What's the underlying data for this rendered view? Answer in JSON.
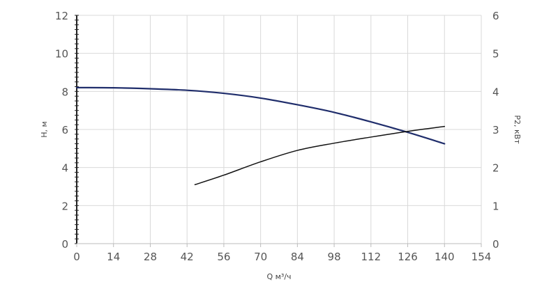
{
  "chart_data": {
    "type": "line",
    "title": "",
    "xlabel": "Q м³/ч",
    "ylabel_left": "H, м",
    "ylabel_right": "P2, кВт",
    "xlim": [
      0,
      154
    ],
    "ylim_left": [
      0,
      12
    ],
    "ylim_right": [
      0,
      6
    ],
    "grid": true,
    "legend": "none",
    "x_ticks": [
      "0",
      "14",
      "28",
      "42",
      "56",
      "70",
      "84",
      "98",
      "112",
      "126",
      "140",
      "154"
    ],
    "y_left_ticks": [
      "0",
      "2",
      "4",
      "6",
      "8",
      "10",
      "12"
    ],
    "y_right_ticks": [
      "0",
      "1",
      "2",
      "3",
      "4",
      "5",
      "6"
    ],
    "colors": {
      "head": "#1f2d6b",
      "power": "#111111",
      "grid": "#d9d9d9"
    },
    "series": [
      {
        "axis": "left",
        "color_key": "head",
        "x": [
          0,
          14,
          28,
          42,
          56,
          70,
          84,
          98,
          112,
          126,
          140
        ],
        "y": [
          8.2,
          8.19,
          8.14,
          8.06,
          7.9,
          7.65,
          7.3,
          6.9,
          6.4,
          5.85,
          5.25
        ]
      },
      {
        "axis": "right",
        "color_key": "power",
        "x": [
          45,
          56,
          70,
          84,
          98,
          112,
          126,
          140
        ],
        "y": [
          1.55,
          1.8,
          2.15,
          2.45,
          2.64,
          2.8,
          2.95,
          3.08
        ]
      }
    ]
  }
}
